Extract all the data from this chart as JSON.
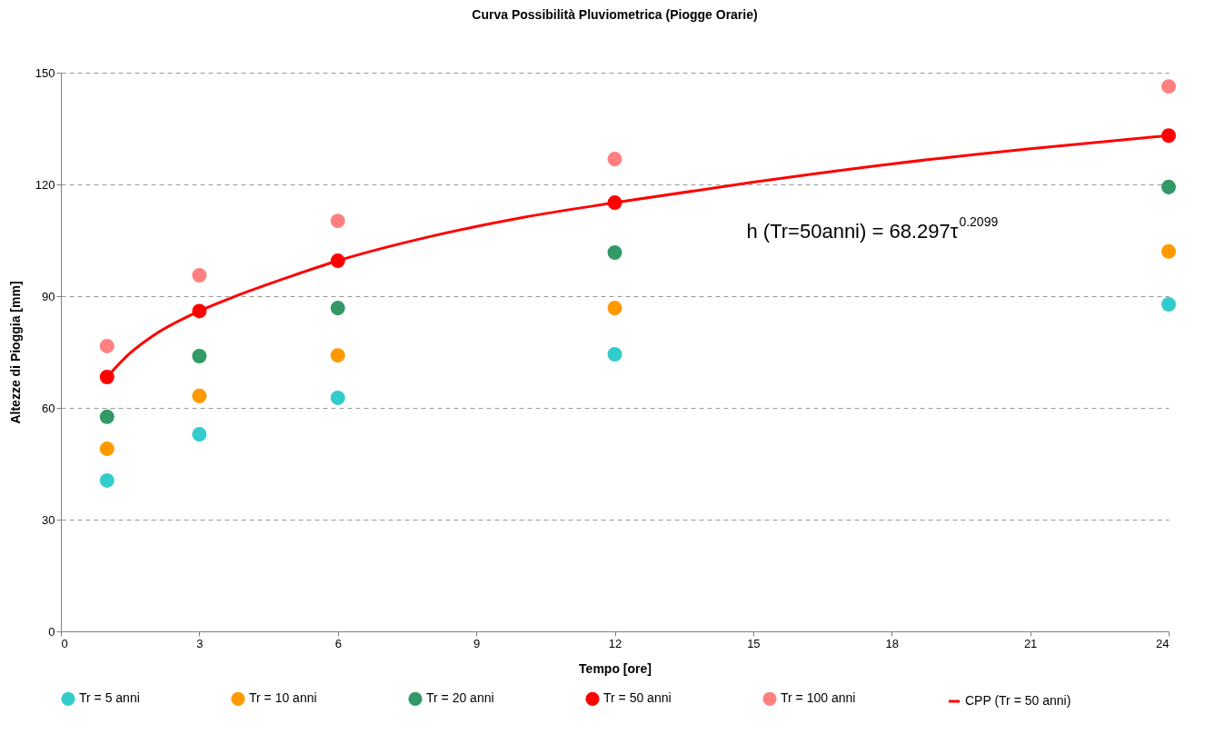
{
  "chart_data": {
    "type": "scatter",
    "title": "Curva Possibilità Pluviometrica (Piogge Orarie)",
    "xlabel": "Tempo [ore]",
    "ylabel": "Altezze di Pioggia [mm]",
    "x": [
      1,
      3,
      6,
      12,
      24
    ],
    "series": [
      {
        "name": "Tr = 5 anni",
        "color": "#33cccc",
        "values": [
          40.5,
          52.9,
          62.7,
          74.4,
          87.8
        ]
      },
      {
        "name": "Tr = 10 anni",
        "color": "#ff9900",
        "values": [
          49.0,
          63.2,
          74.1,
          86.8,
          102.0
        ]
      },
      {
        "name": "Tr = 20 anni",
        "color": "#339966",
        "values": [
          57.6,
          73.9,
          86.8,
          101.7,
          119.3
        ]
      },
      {
        "name": "Tr = 50 anni",
        "color": "#ff0000",
        "values": [
          68.3,
          86.0,
          99.5,
          115.1,
          133.1
        ]
      },
      {
        "name": "Tr = 100 anni",
        "color": "#ff8080",
        "values": [
          76.6,
          95.6,
          110.2,
          126.8,
          146.3
        ]
      },
      {
        "name": "CPP (Tr = 50 anni)",
        "type": "line",
        "color": "#ff0000",
        "x": [
          1,
          1.5,
          2,
          3,
          4,
          5,
          6,
          8,
          10,
          12,
          15,
          18,
          21,
          24
        ],
        "values": [
          68.3,
          74.7,
          79.4,
          86.0,
          91.0,
          95.4,
          99.5,
          106.0,
          111.1,
          115.1,
          120.6,
          125.5,
          129.6,
          133.1
        ]
      }
    ],
    "annotations": [
      "h (Tr=50anni) = 68.297τ$^{0.2099}$"
    ],
    "xlim": [
      0,
      24
    ],
    "xticks": [
      0,
      3,
      6,
      9,
      12,
      15,
      18,
      21,
      24
    ],
    "ylim": [
      0,
      150
    ],
    "yticks": [
      0,
      30,
      60,
      90,
      120,
      150
    ],
    "grid": "y",
    "legend": "bottom"
  }
}
